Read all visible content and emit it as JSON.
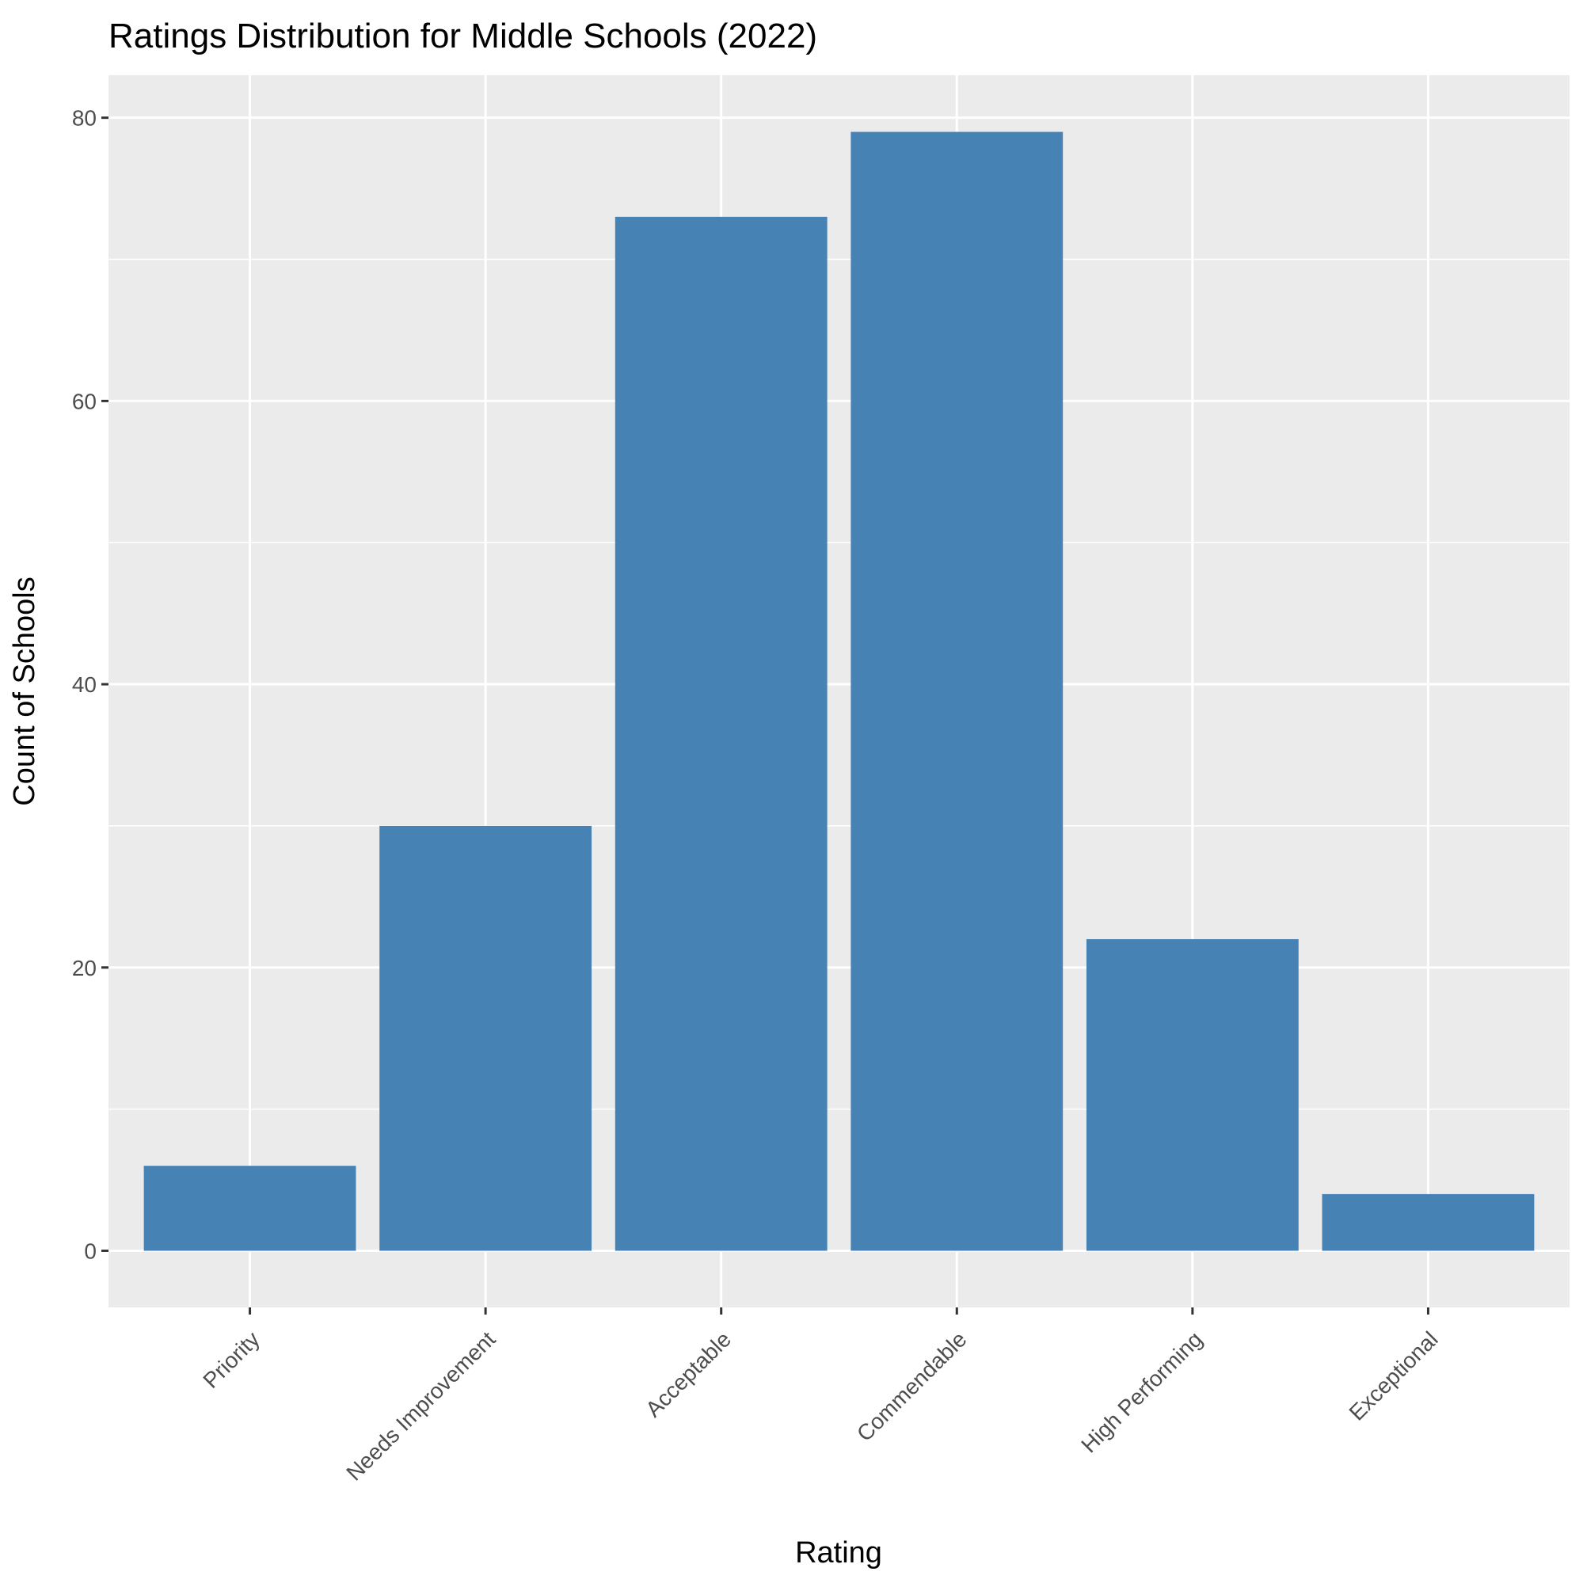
{
  "chart_data": {
    "type": "bar",
    "title": "Ratings Distribution for Middle Schools (2022)",
    "xlabel": "Rating",
    "ylabel": "Count of Schools",
    "categories": [
      "Priority",
      "Needs Improvement",
      "Acceptable",
      "Commendable",
      "High Performing",
      "Exceptional"
    ],
    "values": [
      6,
      30,
      73,
      79,
      22,
      4
    ],
    "ylim": [
      -4,
      83
    ],
    "yticks": [
      0,
      20,
      40,
      60,
      80
    ],
    "ytick_labels": [
      "0",
      "20",
      "40",
      "60",
      "80"
    ],
    "grid": true,
    "legend": "none",
    "colors": {
      "bar": "#4682b4",
      "panel": "#ebebeb",
      "grid": "#ffffff",
      "tick": "#333333"
    }
  }
}
